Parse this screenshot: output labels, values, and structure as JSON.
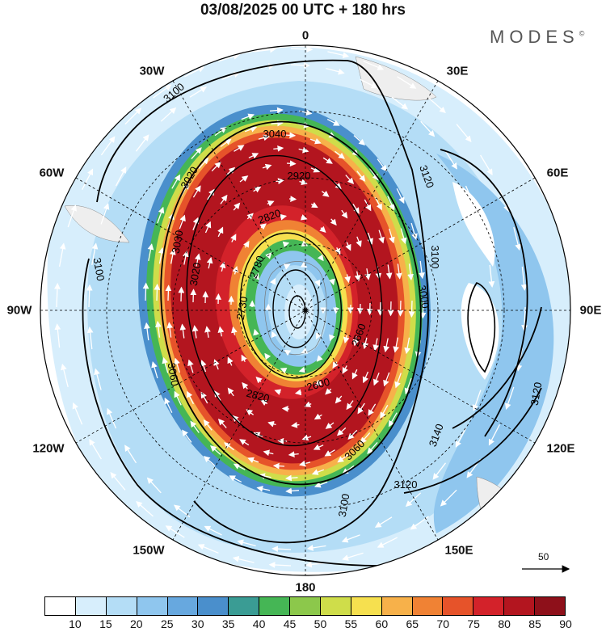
{
  "title": "03/08/2025  00 UTC  + 180 hrs",
  "brand": {
    "name": "MODES",
    "mark": "©"
  },
  "longitude_labels": {
    "n0": "0",
    "e30": "30E",
    "e60": "60E",
    "e90": "90E",
    "e120": "120E",
    "e150": "150E",
    "s180": "180",
    "w150": "150W",
    "w120": "120W",
    "w90": "90W",
    "w60": "60W",
    "w30": "30W"
  },
  "contour_labels": [
    "3100",
    "3040",
    "3020",
    "2920",
    "2820",
    "2780",
    "2730",
    "2600",
    "2660",
    "2820",
    "3000",
    "3030",
    "3060",
    "3120",
    "3140",
    "3120",
    "3100",
    "3060",
    "3100",
    "3020",
    "3100",
    "3120"
  ],
  "legend": {
    "ticks": [
      "10",
      "15",
      "20",
      "25",
      "30",
      "35",
      "40",
      "45",
      "50",
      "55",
      "60",
      "65",
      "70",
      "75",
      "80",
      "85",
      "90"
    ],
    "colors": [
      "#ffffff",
      "#d7eefc",
      "#b4ddf6",
      "#8fc6ee",
      "#67a8df",
      "#4a8fcc",
      "#3a9c94",
      "#45b655",
      "#8cc84b",
      "#cfdd4a",
      "#f6e04f",
      "#f7b14a",
      "#f08234",
      "#e6532a",
      "#d3222a",
      "#b3151f",
      "#8e101a"
    ]
  },
  "vector_reference": "50"
}
